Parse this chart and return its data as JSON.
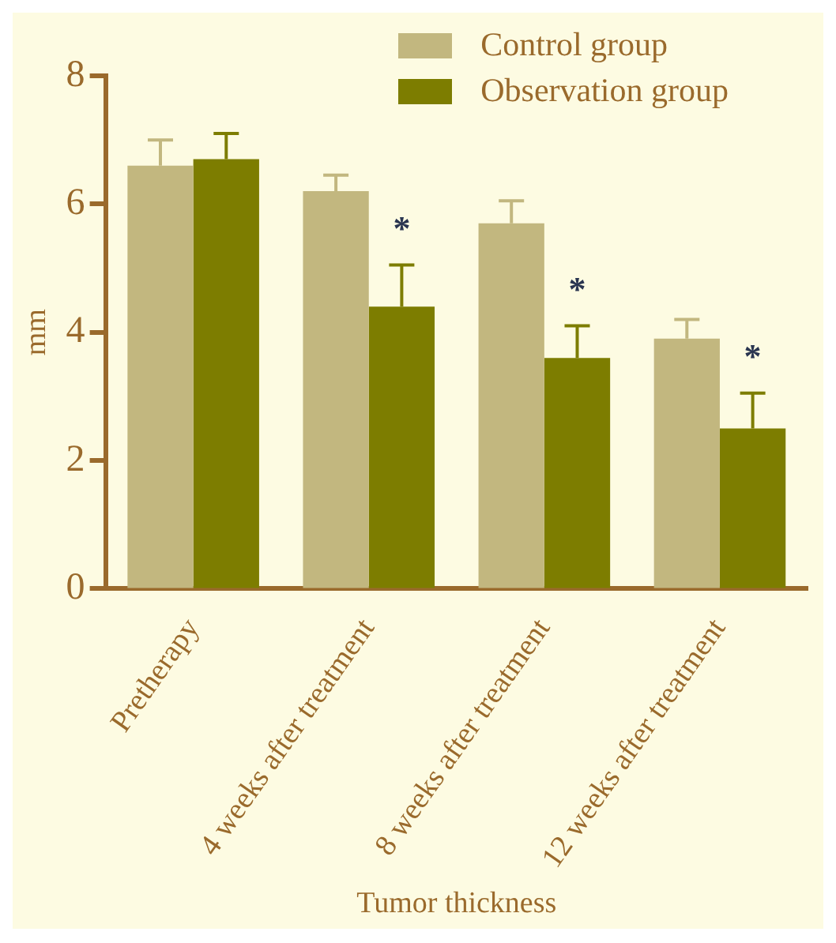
{
  "chart_data": {
    "type": "bar",
    "xlabel": "Tumor thickness",
    "ylabel": "mm",
    "categories": [
      "Pretherapy",
      "4 weeks after treatment",
      "8 weeks after treatment",
      "12 weeks after treatment"
    ],
    "series": [
      {
        "name": "Control group",
        "color": "#c2b77f",
        "values": [
          6.6,
          6.2,
          5.7,
          3.9
        ],
        "errors": [
          [
            6.6,
            7.0
          ],
          [
            6.2,
            6.45
          ],
          [
            5.7,
            6.05
          ],
          [
            3.9,
            4.2
          ]
        ]
      },
      {
        "name": "Observation group",
        "color": "#7d7d00",
        "values": [
          6.7,
          4.4,
          3.6,
          2.5
        ],
        "errors": [
          [
            6.7,
            7.1
          ],
          [
            4.4,
            5.05
          ],
          [
            3.6,
            4.1
          ],
          [
            2.5,
            3.05
          ]
        ]
      }
    ],
    "annotations": [
      {
        "text": "*",
        "x": "4 weeks after treatment",
        "y": 5.7
      },
      {
        "text": "*",
        "x": "8 weeks after treatment",
        "y": 4.75
      },
      {
        "text": "*",
        "x": "12 weeks after treatment",
        "y": 3.7
      }
    ],
    "ylim": [
      0,
      8
    ],
    "yticks": [
      0,
      2,
      4,
      6,
      8
    ],
    "grid": false,
    "legend": "top right"
  }
}
